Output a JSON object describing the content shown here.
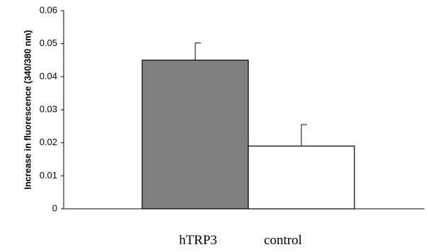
{
  "chart_data": {
    "type": "bar",
    "title": "",
    "xlabel": "",
    "ylabel": "Increase in fluorescence (340/380 nm)",
    "ylim": [
      0,
      0.06
    ],
    "yticks": [
      0,
      0.01,
      0.02,
      0.03,
      0.04,
      0.05,
      0.06
    ],
    "ytick_labels": [
      "0",
      "0.01",
      "0.02",
      "0.03",
      "0.04",
      "0.05",
      "0.06"
    ],
    "categories": [
      "hTRP3",
      "control"
    ],
    "values": [
      0.045,
      0.019
    ],
    "error_upper": [
      0.0052,
      0.0065
    ],
    "bar_colors": [
      "#808080",
      "#ffffff"
    ],
    "bar_edge_color": "#000000",
    "grid": false,
    "legend": "none"
  }
}
